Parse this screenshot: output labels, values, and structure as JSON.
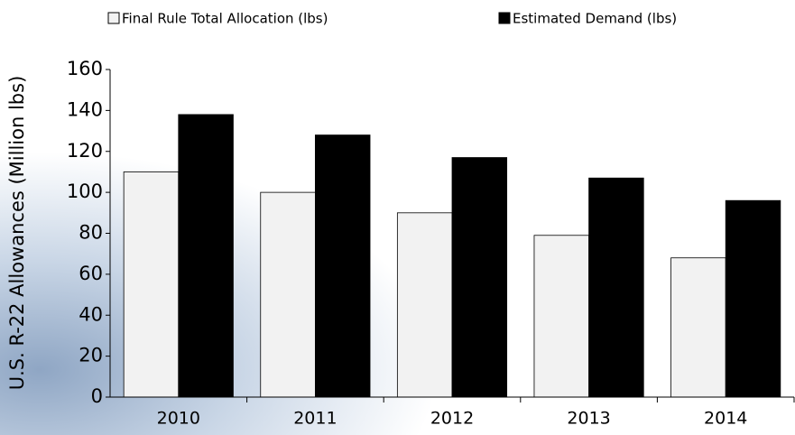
{
  "chart_data": {
    "type": "bar",
    "y_label": "U.S. R-22 Allowances (Million lbs)",
    "categories": [
      "2010",
      "2011",
      "2012",
      "2013",
      "2014"
    ],
    "series": [
      {
        "name": "Final Rule Total Allocation (lbs)",
        "color": "#f2f2f2",
        "values": [
          110,
          100,
          90,
          79,
          68
        ]
      },
      {
        "name": "Estimated Demand (lbs)",
        "color": "#000000",
        "values": [
          138,
          128,
          117,
          107,
          96
        ]
      }
    ],
    "ylim": [
      0,
      160
    ],
    "yticks": [
      0,
      20,
      40,
      60,
      80,
      100,
      120,
      140,
      160
    ],
    "legend": "top"
  }
}
